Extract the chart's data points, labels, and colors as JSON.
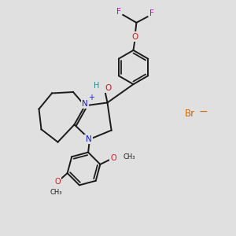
{
  "bg_color": "#e0e0e0",
  "bond_color": "#1a1a1a",
  "bond_lw": 1.4,
  "N_color": "#1a1acc",
  "O_color": "#cc1a1a",
  "F_color": "#cc00cc",
  "H_color": "#2e8b8b",
  "Br_color": "#cc6600",
  "plus_color": "#1a1acc",
  "fig_size": [
    3.0,
    3.0
  ],
  "dpi": 100,
  "xlim": [
    0,
    10
  ],
  "ylim": [
    0,
    10
  ]
}
